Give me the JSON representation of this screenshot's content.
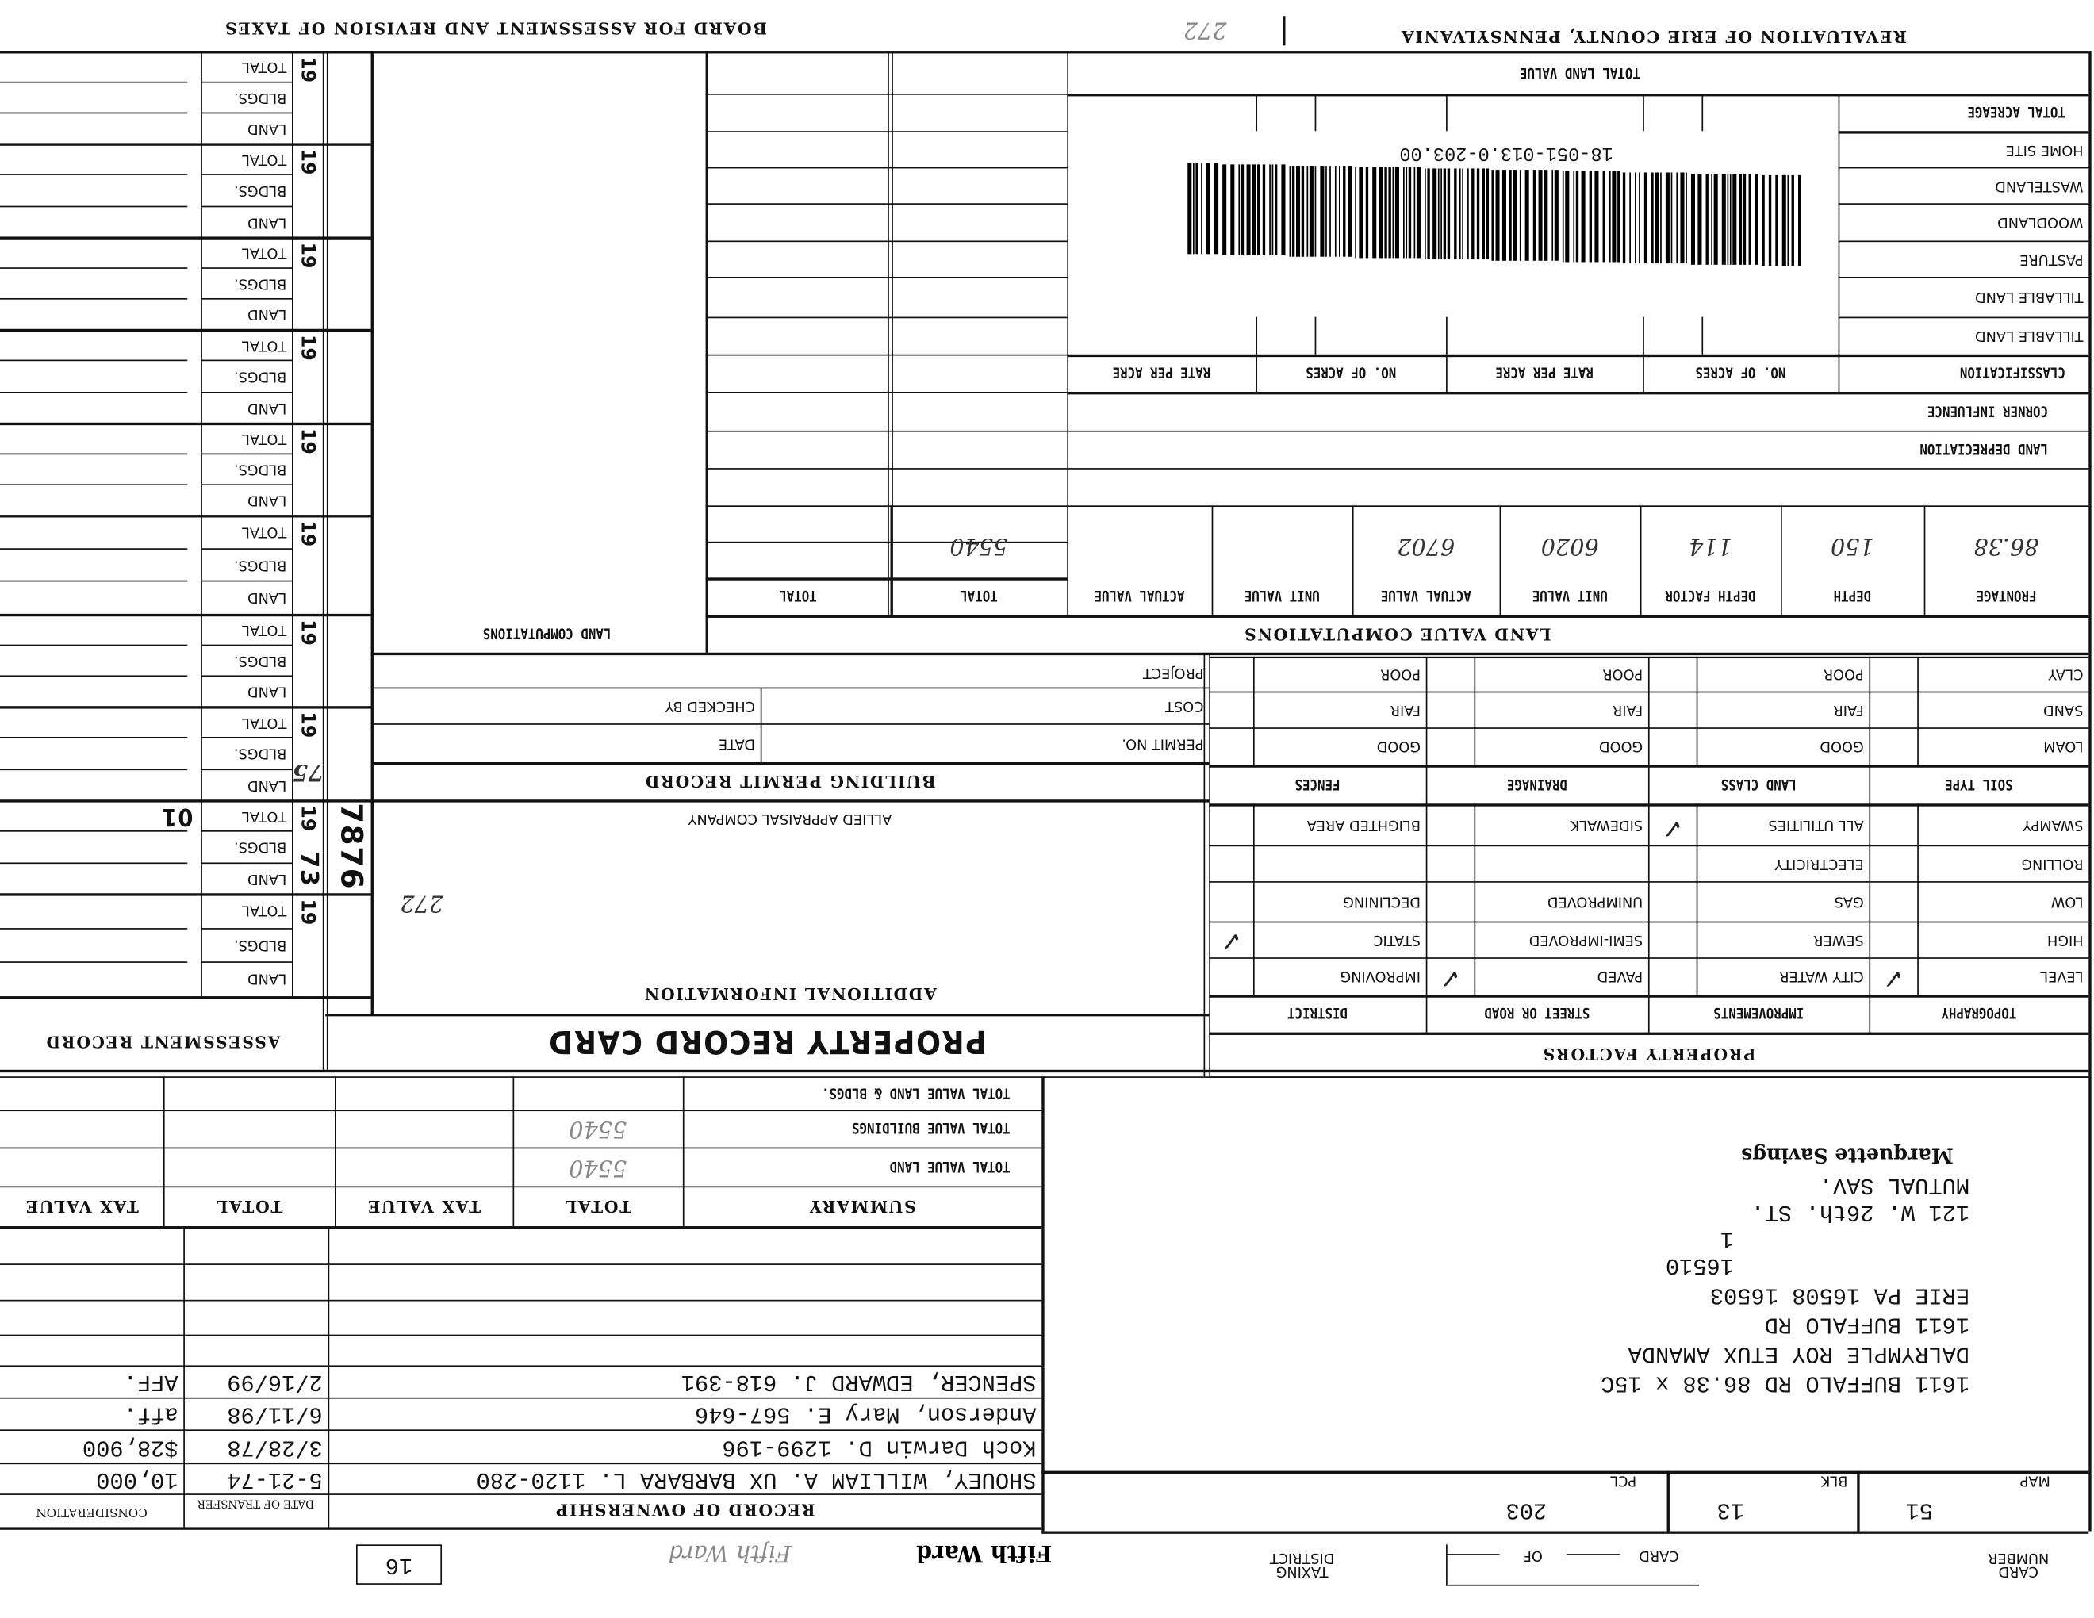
{
  "header": {
    "county_title": "REVALUATION OF ERIE COUNTY, PENNSYLVANIA",
    "board_title": "BOARD FOR ASSESSMENT AND REVISION OF TAXES"
  },
  "barcode": {
    "parcel_id": "18-051-013.0-203.00"
  },
  "land_table": {
    "total_land_value": "TOTAL LAND VALUE",
    "total_acreage": "TOTAL ACREAGE",
    "rows": [
      "HOME SITE",
      "WASTELAND",
      "WOODLAND",
      "PASTURE",
      "TILLABLE LAND",
      "TILLABLE LAND"
    ],
    "classification": "CLASSIFICATION",
    "no_of_acres": "NO. OF ACRES",
    "rate_per_acre": "RATE PER ACRE",
    "corner_influence": "CORNER INFLUENCE",
    "land_depreciation": "LAND DEPRECIATION"
  },
  "frontage": {
    "headers": [
      "FRONTAGE",
      "DEPTH",
      "DEPTH FACTOR",
      "UNIT VALUE",
      "ACTUAL VALUE",
      "UNIT VALUE",
      "ACTUAL VALUE",
      "TOTAL",
      "TOTAL"
    ],
    "values": [
      "86.38",
      "150",
      "114",
      "6020",
      "6702",
      "",
      "",
      "5540",
      ""
    ]
  },
  "land_value_computations_title": "LAND VALUE COMPUTATIONS",
  "land_computations_label": "LAND COMPUTATIONS",
  "property_factors": {
    "title": "PROPERTY FACTORS",
    "headers": [
      "TOPOGRAPHY",
      "IMPROVEMENTS",
      "STREET OR ROAD",
      "DISTRICT"
    ],
    "rows": [
      [
        "SWAMPY",
        "ALL UTILITIES",
        "SIDEWALK",
        "BLIGHTED AREA"
      ],
      [
        "ROLLING",
        "ELECTRICITY",
        "",
        ""
      ],
      [
        "LOW",
        "GAS",
        "UNIMPROVED",
        "DECLINING"
      ],
      [
        "HIGH",
        "SEWER",
        "SEMI-IMPROVED",
        "STATIC"
      ],
      [
        "LEVEL",
        "CITY WATER",
        "PAVED",
        "IMPROVING"
      ]
    ],
    "checked": {
      "topography": "LEVEL",
      "improvements": "ALL UTILITIES",
      "street": "PAVED",
      "district": "STATIC"
    },
    "soil_headers": [
      "SOIL TYPE",
      "LAND CLASS",
      "DRAINAGE",
      "FENCES"
    ],
    "soil_rows": [
      [
        "CLAY",
        "POOR",
        "POOR",
        "POOR"
      ],
      [
        "SAND",
        "FAIR",
        "FAIR",
        "FAIR"
      ],
      [
        "LOAM",
        "GOOD",
        "GOOD",
        "GOOD"
      ]
    ]
  },
  "building_permit": {
    "title": "BUILDING PERMIT RECORD",
    "project": "PROJECT",
    "cost": "COST",
    "checked_by": "CHECKED BY",
    "permit_no": "PERMIT NO.",
    "date": "DATE"
  },
  "additional_info": {
    "company": "ALLIED APPRAISAL COMPANY",
    "title": "ADDITIONAL INFORMATION",
    "notes": [
      "272"
    ]
  },
  "card_title": "PROPERTY RECORD CARD",
  "assessment": {
    "title": "ASSESSMENT RECORD",
    "year_prefix": "19",
    "labels": [
      "TOTAL",
      "BLDGS.",
      "LAND"
    ],
    "card_no": "7876",
    "year_handwritten": "73",
    "stamp": "01",
    "note": "75"
  },
  "summary": {
    "title": "SUMMARY",
    "headers": [
      "TOTAL",
      "TAX VALUE",
      "TOTAL",
      "TAX VALUE"
    ],
    "rows": [
      {
        "label": "TOTAL VALUE LAND & BLDGS.",
        "value": ""
      },
      {
        "label": "TOTAL VALUE BUILDINGS",
        "value": "5540"
      },
      {
        "label": "TOTAL VALUE LAND",
        "value": "5540"
      }
    ]
  },
  "ownership": {
    "title": "RECORD OF OWNERSHIP",
    "date_header": "DATE OF TRANSFER",
    "consideration_header": "CONSIDERATION",
    "rows": [
      {
        "name": "SHOUEY, WILLIAM A. UX BARBARA L. 1120-280",
        "date": "5-21-74",
        "consideration": "10,000"
      },
      {
        "name": "Koch Darwin D.  1299-196",
        "date": "3/28/78",
        "consideration": "$28,900"
      },
      {
        "name": "Anderson, Mary E.          567-646",
        "date": "6/11/98",
        "consideration": "aff."
      },
      {
        "name": "SPENCER, EDWARD J.         618-391",
        "date": "2/16/99",
        "consideration": "AFF."
      }
    ]
  },
  "owner_block": {
    "lines": [
      "1611 BUFFALO RD 86.38 x 15C",
      "DALRYMPLE ROY ETUX AMANDA",
      "1611 BUFFALO RD",
      "ERIE PA 16508  16503",
      "16510",
      "1",
      "121 W. 26th. ST.",
      "MUTUAL SAV.",
      "Marquette Savings"
    ]
  },
  "parcel": {
    "map_label": "MAP",
    "map": "51",
    "blk_label": "BLK",
    "blk": "13",
    "pcl_label": "PCL",
    "pcl": "203"
  },
  "footer": {
    "card_number_label": "CARD NUMBER",
    "card_label": "CARD",
    "of_label": "OF",
    "taxing_district_label": "TAXING DISTRICT",
    "district": "Fifth Ward",
    "district_faint": "Fifth Ward",
    "box": "16"
  }
}
